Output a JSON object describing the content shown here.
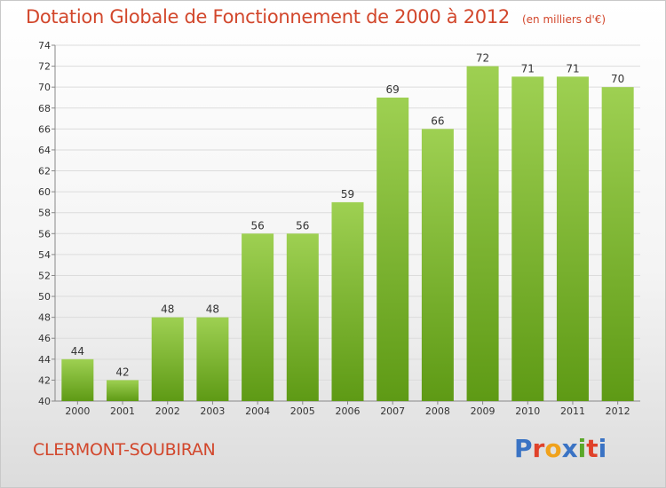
{
  "header": {
    "title": "Dotation Globale de Fonctionnement de 2000 à 2012",
    "unit": "(en milliers d'€)"
  },
  "footer": {
    "commune": "CLERMONT-SOUBIRAN",
    "logo": "Proxiti"
  },
  "colors": {
    "title": "#d2472c",
    "bar_light": "#9ed052",
    "bar_dark": "#5e9a15",
    "logo_letters": [
      "#3a73c4",
      "#e0422a",
      "#f0a21c",
      "#3a73c4",
      "#5aa829",
      "#e0422a",
      "#3a73c4"
    ]
  },
  "chart_data": {
    "type": "bar",
    "title": "Dotation Globale de Fonctionnement de 2000 à 2012",
    "subtitle": "(en milliers d'€)",
    "xlabel": "",
    "ylabel": "",
    "categories": [
      "2000",
      "2001",
      "2002",
      "2003",
      "2004",
      "2005",
      "2006",
      "2007",
      "2008",
      "2009",
      "2010",
      "2011",
      "2012"
    ],
    "values": [
      44,
      42,
      48,
      48,
      56,
      56,
      59,
      69,
      66,
      72,
      71,
      71,
      70
    ],
    "ylim": [
      40,
      74
    ],
    "yticks": [
      40,
      42,
      44,
      46,
      48,
      50,
      52,
      54,
      56,
      58,
      60,
      62,
      64,
      66,
      68,
      70,
      72,
      74
    ],
    "grid": true,
    "legend": "none"
  }
}
